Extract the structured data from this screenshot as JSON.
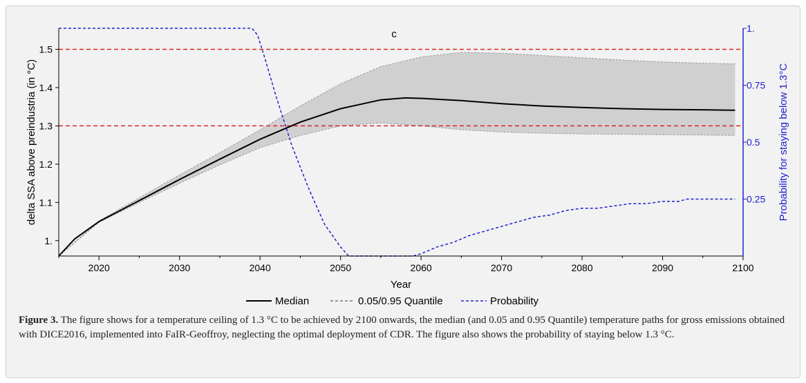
{
  "chart_data": {
    "type": "line",
    "panel_label": "c",
    "xlabel": "Year",
    "ylabel": "delta SSA above preindustria (in °C)",
    "y2label": "Probability for staying below 1.3°C",
    "xlim": [
      2015,
      2100
    ],
    "ylim": [
      0.96,
      1.555
    ],
    "y2lim": [
      0,
      1
    ],
    "x_ticks": [
      2020,
      2030,
      2040,
      2050,
      2060,
      2070,
      2080,
      2090,
      2100
    ],
    "y_ticks": [
      1.0,
      1.1,
      1.2,
      1.3,
      1.4,
      1.5
    ],
    "y_tick_labels": [
      "1.",
      "1.1",
      "1.2",
      "1.3",
      "1.4",
      "1.5"
    ],
    "y2_ticks": [
      0.25,
      0.5,
      0.75,
      1.0
    ],
    "y2_tick_labels": [
      "0.25",
      "0.5",
      "0.75",
      "1."
    ],
    "reference_lines": [
      1.3,
      1.5
    ],
    "legend": {
      "placement": "bottom-center",
      "entries": [
        "Median",
        "0.05/0.95 Quantile",
        "Probability"
      ]
    },
    "series": [
      {
        "name": "Median",
        "x": [
          2015,
          2017,
          2020,
          2025,
          2030,
          2035,
          2040,
          2045,
          2050,
          2055,
          2058,
          2060,
          2065,
          2070,
          2075,
          2080,
          2085,
          2090,
          2095,
          2099
        ],
        "values": [
          0.96,
          1.005,
          1.05,
          1.105,
          1.16,
          1.213,
          1.265,
          1.31,
          1.345,
          1.368,
          1.373,
          1.372,
          1.366,
          1.358,
          1.352,
          1.348,
          1.345,
          1.343,
          1.342,
          1.341
        ]
      },
      {
        "name": "0.05/0.95 Quantile",
        "x": [
          2015,
          2020,
          2025,
          2030,
          2035,
          2040,
          2045,
          2050,
          2055,
          2060,
          2065,
          2070,
          2075,
          2080,
          2085,
          2090,
          2095,
          2099
        ],
        "upper": [
          0.96,
          1.052,
          1.112,
          1.172,
          1.23,
          1.29,
          1.352,
          1.41,
          1.455,
          1.48,
          1.492,
          1.49,
          1.484,
          1.478,
          1.472,
          1.467,
          1.464,
          1.462
        ],
        "lower": [
          0.96,
          1.048,
          1.1,
          1.15,
          1.198,
          1.243,
          1.275,
          1.3,
          1.308,
          1.3,
          1.29,
          1.284,
          1.281,
          1.279,
          1.278,
          1.277,
          1.276,
          1.275
        ]
      },
      {
        "name": "Probability",
        "axis": "right",
        "x": [
          2015,
          2039,
          2039.7,
          2040.5,
          2042,
          2044,
          2046,
          2048,
          2050,
          2051,
          2055,
          2059,
          2060,
          2062,
          2064,
          2066,
          2068,
          2070,
          2072,
          2074,
          2076,
          2078,
          2080,
          2082,
          2084,
          2086,
          2088,
          2090,
          2092,
          2093,
          2095,
          2099
        ],
        "values": [
          1.0,
          1.0,
          0.97,
          0.88,
          0.7,
          0.48,
          0.3,
          0.14,
          0.04,
          0.0,
          0.0,
          0.0,
          0.01,
          0.04,
          0.06,
          0.09,
          0.11,
          0.13,
          0.15,
          0.17,
          0.18,
          0.2,
          0.21,
          0.21,
          0.22,
          0.23,
          0.23,
          0.24,
          0.24,
          0.25,
          0.25,
          0.25
        ]
      }
    ],
    "colors": {
      "median": "#000000",
      "band_fill": "#d0d0d0",
      "quantile_edge": "#9a9a9a",
      "probability": "#1f1fd1",
      "reference": "#e02020"
    }
  },
  "caption": {
    "label": "Figure 3.",
    "text": " The figure shows for a temperature ceiling of 1.3 °C to be achieved by 2100 onwards, the median (and 0.05 and 0.95 Quantile) temperature paths for gross emissions obtained with DICE2016, implemented into FaIR-Geoffroy, neglecting the optimal deployment of CDR. The figure also shows the probability of staying below 1.3 °C."
  }
}
